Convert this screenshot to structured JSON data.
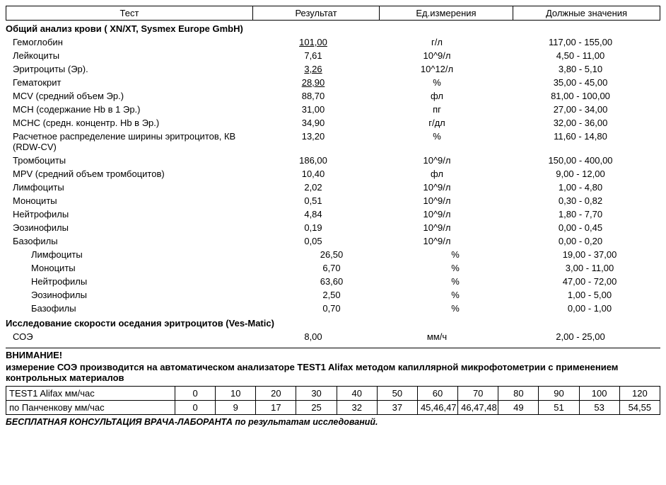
{
  "header": {
    "c1": "Тест",
    "c2": "Результат",
    "c3": "Ед.измерения",
    "c4": "Должные значения"
  },
  "section1": "Общий анализ крови ( XN/XT, Sysmex  Europe GmbH)",
  "rows1": [
    {
      "t": "Гемоглобин",
      "r": "101,00",
      "u": "г/л",
      "ref": "117,00 - 155,00",
      "flag": true
    },
    {
      "t": "Лейкоциты",
      "r": "7,61",
      "u": "10^9/л",
      "ref": "4,50 - 11,00"
    },
    {
      "t": "Эритроциты (Эр).",
      "r": "3,26",
      "u": "10^12/л",
      "ref": "3,80 - 5,10",
      "flag": true
    },
    {
      "t": "Гематокрит",
      "r": "28,90",
      "u": "%",
      "ref": "35,00 - 45,00",
      "flag": true
    },
    {
      "t": "MCV (средний объем Эр.)",
      "r": "88,70",
      "u": "фл",
      "ref": "81,00 - 100,00"
    },
    {
      "t": "MCH (содержание Hb в 1 Эр.)",
      "r": "31,00",
      "u": "пг",
      "ref": "27,00 - 34,00"
    },
    {
      "t": "MCHC (средн. концентр. Hb в Эр.)",
      "r": "34,90",
      "u": "г/дл",
      "ref": "32,00 - 36,00"
    },
    {
      "t": "Расчетное распределение ширины эритроцитов, КВ (RDW-CV)",
      "r": "13,20",
      "u": "%",
      "ref": "11,60 - 14,80"
    },
    {
      "t": "Тромбоциты",
      "r": "186,00",
      "u": "10^9/л",
      "ref": "150,00 - 400,00"
    },
    {
      "t": "MPV (средний объем тромбоцитов)",
      "r": "10,40",
      "u": "фл",
      "ref": "9,00 - 12,00"
    },
    {
      "t": "Лимфоциты",
      "r": "2,02",
      "u": "10^9/л",
      "ref": "1,00 - 4,80"
    },
    {
      "t": "Моноциты",
      "r": "0,51",
      "u": "10^9/л",
      "ref": "0,30 - 0,82"
    },
    {
      "t": "Нейтрофилы",
      "r": "4,84",
      "u": "10^9/л",
      "ref": "1,80 - 7,70"
    },
    {
      "t": "Эозинофилы",
      "r": "0,19",
      "u": "10^9/л",
      "ref": "0,00 - 0,45"
    },
    {
      "t": "Базофилы",
      "r": "0,05",
      "u": "10^9/л",
      "ref": "0,00 - 0,20"
    },
    {
      "t": "Лимфоциты",
      "r": "26,50",
      "u": "%",
      "ref": "19,00 - 37,00",
      "indent": true
    },
    {
      "t": "Моноциты",
      "r": "6,70",
      "u": "%",
      "ref": "3,00 - 11,00",
      "indent": true
    },
    {
      "t": "Нейтрофилы",
      "r": "63,60",
      "u": "%",
      "ref": "47,00 - 72,00",
      "indent": true
    },
    {
      "t": "Эозинофилы",
      "r": "2,50",
      "u": "%",
      "ref": "1,00 - 5,00",
      "indent": true
    },
    {
      "t": "Базофилы",
      "r": "0,70",
      "u": "%",
      "ref": "0,00 - 1,00",
      "indent": true
    }
  ],
  "section2": "Исследование скорости оседания эритроцитов (Ves-Matic)",
  "rows2": [
    {
      "t": "СОЭ",
      "r": "8,00",
      "u": "мм/ч",
      "ref": "2,00 - 25,00"
    }
  ],
  "attention": "ВНИМАНИЕ!",
  "attention_note": "измерение СОЭ производится на автоматическом анализаторе TEST1 Alifax методом капиллярной микрофотометрии с применением контрольных материалов",
  "conv": {
    "row1_label": "TEST1 Alifax мм/час",
    "row1": [
      "0",
      "10",
      "20",
      "30",
      "40",
      "50",
      "60",
      "70",
      "80",
      "90",
      "100",
      "120"
    ],
    "row2_label": "по Панченкову мм/час",
    "row2": [
      "0",
      "9",
      "17",
      "25",
      "32",
      "37",
      "45,46,47",
      "46,47,48",
      "49",
      "51",
      "53",
      "54,55"
    ]
  },
  "footer": "БЕСПЛАТНАЯ КОНСУЛЬТАЦИЯ ВРАЧА-ЛАБОРАНТА по результатам исследований."
}
